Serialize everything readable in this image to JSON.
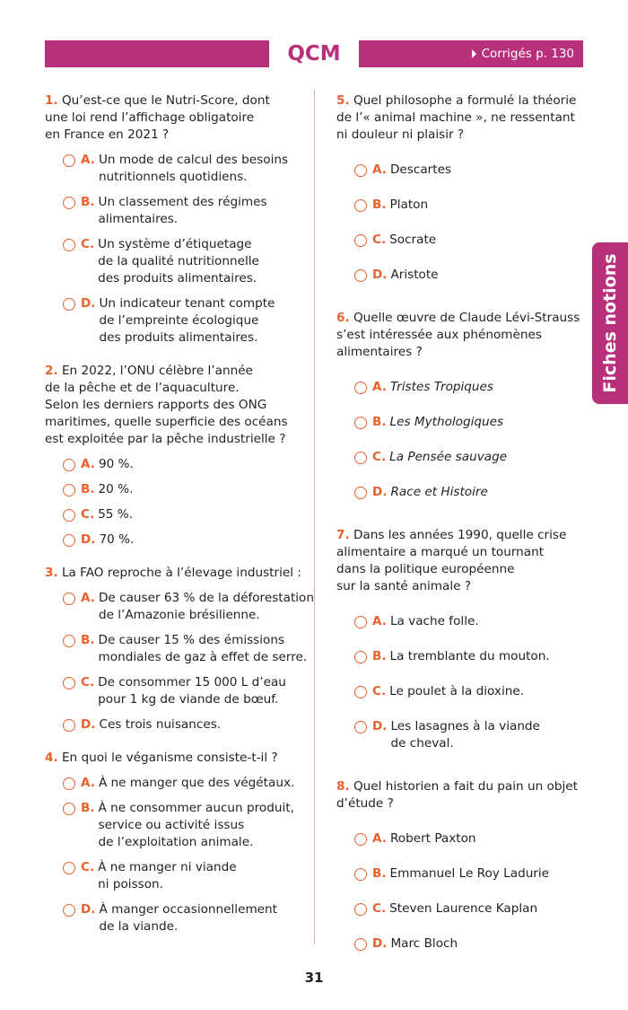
{
  "header": {
    "title": "QCM",
    "link": "Corrigés p. 130"
  },
  "side_tab": "Fiches notions",
  "questions": [
    {
      "number": "1.",
      "text": "Qu’est-ce que le Nutri-Score, dont\nune loi rend l’affichage obligatoire\nen France en 2021 ?",
      "options": [
        {
          "letter": "A.",
          "text": "Un mode de calcul des besoins\nnutritionnels quotidiens."
        },
        {
          "letter": "B.",
          "text": "Un classement des régimes\nalimentaires."
        },
        {
          "letter": "C.",
          "text": "Un système d’étiquetage\nde la qualité nutritionnelle\ndes produits alimentaires."
        },
        {
          "letter": "D.",
          "text": "Un indicateur tenant compte\nde l’empreinte écologique\ndes produits alimentaires."
        }
      ]
    },
    {
      "number": "2.",
      "text": "En 2022, l’ONU célèbre l’année\nde la pêche et de l’aquaculture.\nSelon les derniers rapports des ONG\nmaritimes, quelle superficie des océans\nest exploitée par la pêche industrielle ?",
      "options": [
        {
          "letter": "A.",
          "text": "90 %."
        },
        {
          "letter": "B.",
          "text": "20 %."
        },
        {
          "letter": "C.",
          "text": "55 %."
        },
        {
          "letter": "D.",
          "text": "70 %."
        }
      ]
    },
    {
      "number": "3.",
      "text": "La FAO reproche à l’élevage industriel :",
      "options": [
        {
          "letter": "A.",
          "text": "De causer 63 % de la déforestation\nde l’Amazonie brésilienne."
        },
        {
          "letter": "B.",
          "text": "De causer 15 % des émissions\nmondiales de gaz à effet de serre."
        },
        {
          "letter": "C.",
          "text": "De consommer 15 000 L d’eau\npour 1 kg de viande de bœuf."
        },
        {
          "letter": "D.",
          "text": "Ces trois nuisances."
        }
      ]
    },
    {
      "number": "4.",
      "text": "En quoi le véganisme consiste-t-il ?",
      "options": [
        {
          "letter": "A.",
          "text": "À ne manger que des végétaux."
        },
        {
          "letter": "B.",
          "text": "À ne consommer aucun produit,\nservice ou activité issus\nde l’exploitation animale."
        },
        {
          "letter": "C.",
          "text": "À ne manger ni viande\nni poisson."
        },
        {
          "letter": "D.",
          "text": "À manger occasionnellement\nde la viande."
        }
      ]
    },
    {
      "number": "5.",
      "text": "Quel philosophe a formulé la théorie\nde l’« animal machine », ne ressentant\nni douleur ni plaisir ?",
      "options": [
        {
          "letter": "A.",
          "text": "Descartes"
        },
        {
          "letter": "B.",
          "text": "Platon"
        },
        {
          "letter": "C.",
          "text": "Socrate"
        },
        {
          "letter": "D.",
          "text": "Aristote"
        }
      ]
    },
    {
      "number": "6.",
      "text": "Quelle œuvre de Claude Lévi-Strauss\ns’est intéressée aux phénomènes\nalimentaires ?",
      "options": [
        {
          "letter": "A.",
          "text": "Tristes Tropiques"
        },
        {
          "letter": "B.",
          "text": "Les Mythologiques"
        },
        {
          "letter": "C.",
          "text": "La Pensée sauvage"
        },
        {
          "letter": "D.",
          "text": "Race et Histoire"
        }
      ]
    },
    {
      "number": "7.",
      "text": "Dans les années 1990, quelle crise\nalimentaire a marqué un tournant\ndans la politique européenne\nsur la santé animale ?",
      "options": [
        {
          "letter": "A.",
          "text": "La vache folle."
        },
        {
          "letter": "B.",
          "text": "La tremblante du mouton."
        },
        {
          "letter": "C.",
          "text": "Le poulet à la dioxine."
        },
        {
          "letter": "D.",
          "text": "Les lasagnes à la viande\nde cheval."
        }
      ]
    },
    {
      "number": "8.",
      "text": "Quel historien a fait du pain un objet\nd’étude ?",
      "options": [
        {
          "letter": "A.",
          "text": "Robert Paxton"
        },
        {
          "letter": "B.",
          "text": "Emmanuel Le Roy Ladurie"
        },
        {
          "letter": "C.",
          "text": "Steven Laurence Kaplan"
        },
        {
          "letter": "D.",
          "text": "Marc Bloch"
        }
      ]
    }
  ],
  "page_number": "31"
}
